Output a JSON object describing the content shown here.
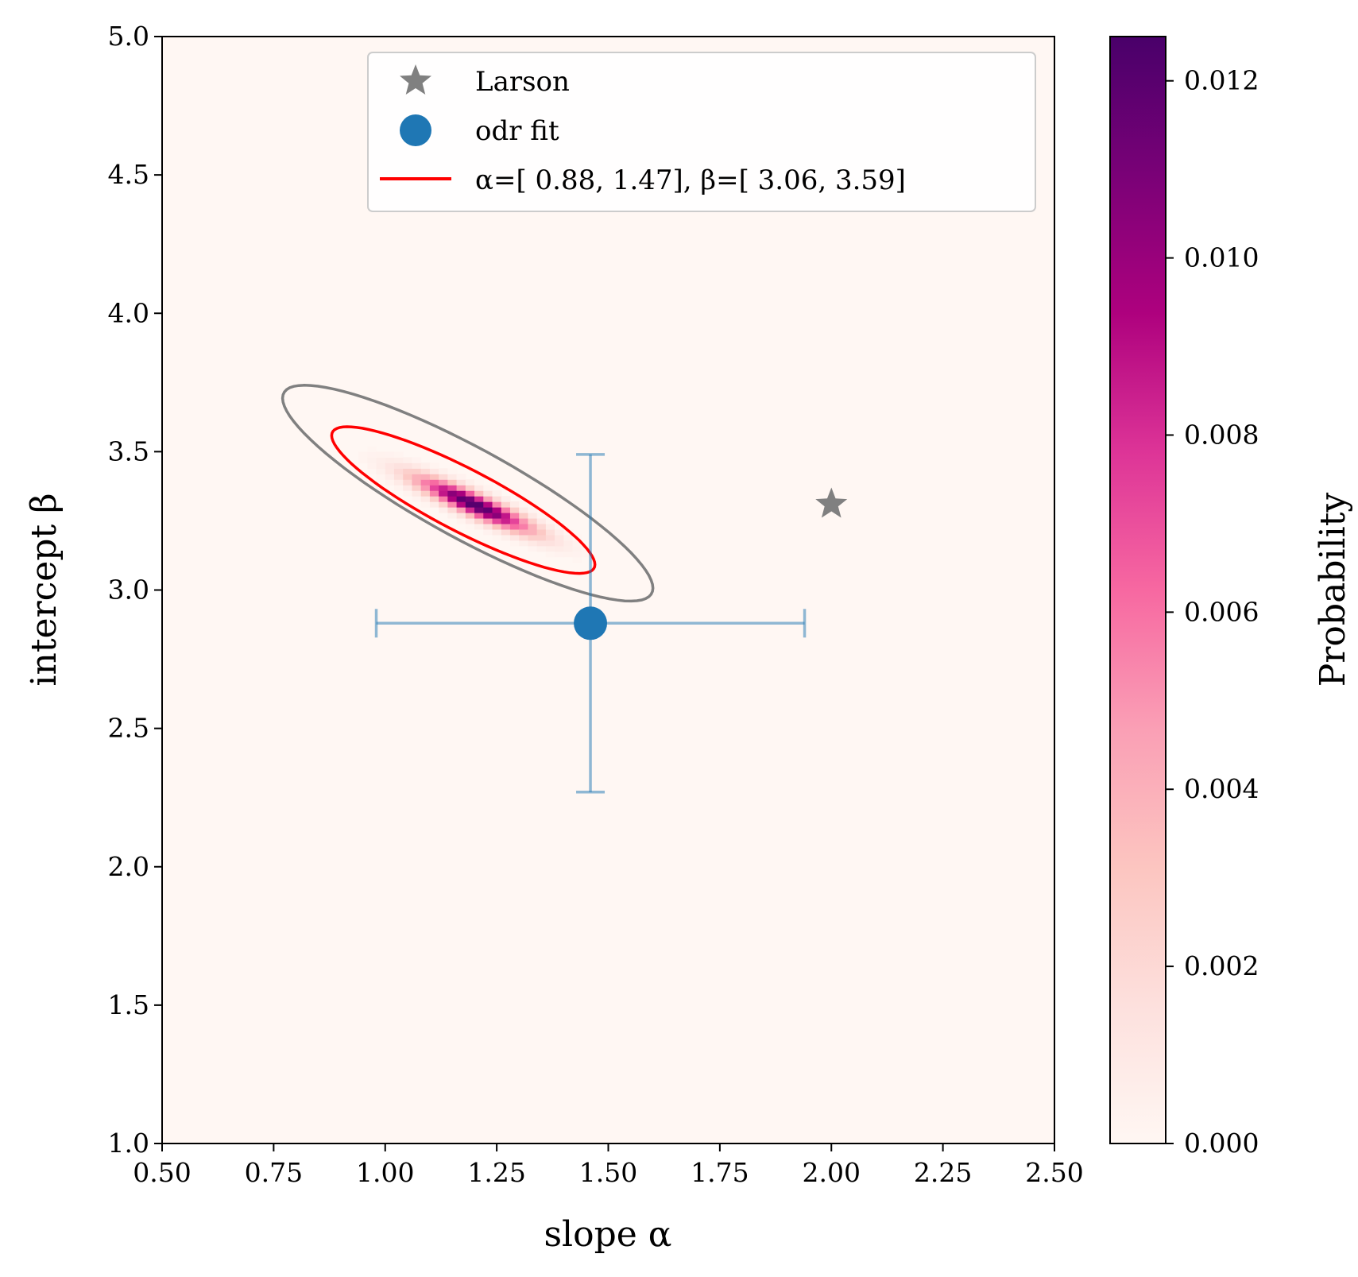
{
  "chart_data": {
    "type": "heatmap",
    "title": "",
    "xlabel": "slope α",
    "ylabel": "intercept β",
    "xlim": [
      0.5,
      2.5
    ],
    "ylim": [
      1.0,
      5.0
    ],
    "xticks": [
      "0.50",
      "0.75",
      "1.00",
      "1.25",
      "1.50",
      "1.75",
      "2.00",
      "2.25",
      "2.50"
    ],
    "yticks": [
      "1.0",
      "1.5",
      "2.0",
      "2.5",
      "3.0",
      "3.5",
      "4.0",
      "4.5",
      "5.0"
    ],
    "heatmap": {
      "peak_alpha": 1.2,
      "peak_beta": 3.31,
      "peak_probability": 0.0125,
      "colormap": "RdPu"
    },
    "colorbar": {
      "label": "Probability",
      "range": [
        0.0,
        0.0125
      ],
      "ticks": [
        "0.000",
        "0.002",
        "0.004",
        "0.006",
        "0.008",
        "0.010",
        "0.012"
      ]
    },
    "series": [
      {
        "name": "Larson",
        "type": "marker",
        "marker": "star",
        "color": "#808080",
        "x": 2.0,
        "y": 3.31
      },
      {
        "name": "odr fit",
        "type": "errorbar",
        "marker": "circle",
        "color": "#1f77b4",
        "x": 1.46,
        "y": 2.88,
        "xerr": [
          0.48,
          0.48
        ],
        "yerr": [
          0.61,
          0.61
        ]
      },
      {
        "name": "α=[ 0.88,  1.47], β=[ 3.06,  3.59]",
        "type": "contour",
        "color": "#ff0000",
        "alpha_range": [
          0.88,
          1.47
        ],
        "beta_range": [
          3.06,
          3.59
        ]
      },
      {
        "name": "",
        "type": "contour",
        "color": "#808080",
        "alpha_range": [
          0.77,
          1.6
        ],
        "beta_range": [
          2.96,
          3.74
        ]
      }
    ],
    "legend": {
      "position": "top-center",
      "entries": [
        "Larson",
        "odr fit",
        "α=[ 0.88,  1.47], β=[ 3.06,  3.59]"
      ]
    }
  }
}
